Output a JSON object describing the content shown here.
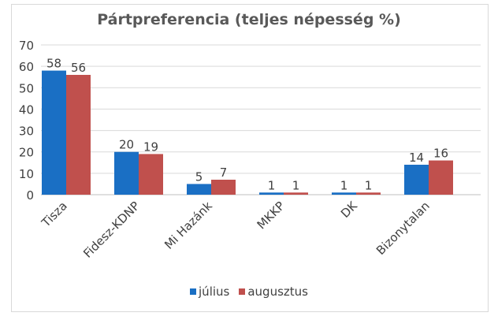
{
  "chart_data": {
    "type": "bar",
    "title": "Pártpreferencia (teljes népesség %)",
    "categories": [
      "Tisza",
      "Fidesz-KDNP",
      "Mi Hazánk",
      "MKKP",
      "DK",
      "Bizonytalan"
    ],
    "series": [
      {
        "name": "július",
        "values": [
          58,
          20,
          5,
          1,
          1,
          14
        ],
        "color": "#1a6fc4"
      },
      {
        "name": "augusztus",
        "values": [
          56,
          19,
          7,
          1,
          1,
          16
        ],
        "color": "#c0504d"
      }
    ],
    "ylim": [
      0,
      70
    ],
    "yticks": [
      0,
      10,
      20,
      30,
      40,
      50,
      60,
      70
    ],
    "grid": true,
    "legend_position": "bottom"
  }
}
